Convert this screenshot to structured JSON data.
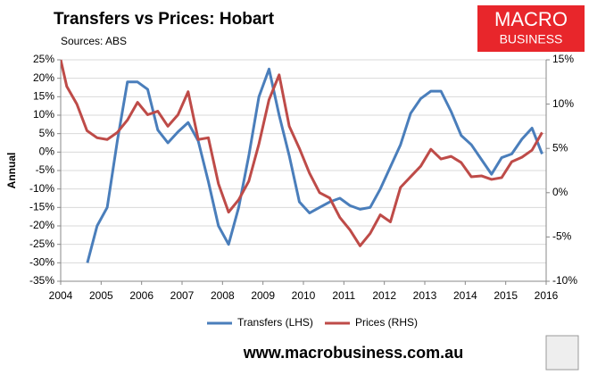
{
  "chart_data": {
    "type": "line",
    "title": "Transfers vs Prices: Hobart",
    "subtitle": "Sources: ABS",
    "ylabel": "Annual",
    "brand": [
      "MACRO",
      "BUSINESS"
    ],
    "footer": "www.macrobusiness.com.au",
    "xlim": [
      2004,
      2016
    ],
    "xticks": [
      2004,
      2005,
      2006,
      2007,
      2008,
      2009,
      2010,
      2011,
      2012,
      2013,
      2014,
      2015,
      2016
    ],
    "ylim": [
      -35,
      25
    ],
    "yticks": [
      {
        "value": -35,
        "label": "-35%"
      },
      {
        "value": -30,
        "label": "-30%"
      },
      {
        "value": -25,
        "label": "-25%"
      },
      {
        "value": -20,
        "label": "-20%"
      },
      {
        "value": -15,
        "label": "-15%"
      },
      {
        "value": -10,
        "label": "-10%"
      },
      {
        "value": -5,
        "label": "-5%"
      },
      {
        "value": 0,
        "label": "0%"
      },
      {
        "value": 5,
        "label": "5%"
      },
      {
        "value": 10,
        "label": "10%"
      },
      {
        "value": 15,
        "label": "15%"
      },
      {
        "value": 20,
        "label": "20%"
      },
      {
        "value": 25,
        "label": "25%"
      }
    ],
    "y2lim": [
      -10,
      15
    ],
    "y2ticks": [
      {
        "value": -10,
        "label": "-10%"
      },
      {
        "value": -5,
        "label": "-5%"
      },
      {
        "value": 0,
        "label": "0%"
      },
      {
        "value": 5,
        "label": "5%"
      },
      {
        "value": 10,
        "label": "10%"
      },
      {
        "value": 15,
        "label": "15%"
      }
    ],
    "grid": true,
    "legend": "bottom",
    "series": [
      {
        "name": "Transfers (LHS)",
        "color": "#4a7ebb",
        "axis": "y",
        "x": [
          2004.66,
          2004.9,
          2005.15,
          2005.4,
          2005.65,
          2005.9,
          2006.15,
          2006.4,
          2006.65,
          2006.9,
          2007.15,
          2007.4,
          2007.65,
          2007.9,
          2008.15,
          2008.4,
          2008.65,
          2008.9,
          2009.15,
          2009.4,
          2009.65,
          2009.9,
          2010.15,
          2010.4,
          2010.65,
          2010.9,
          2011.15,
          2011.4,
          2011.65,
          2011.9,
          2012.15,
          2012.4,
          2012.65,
          2012.9,
          2013.15,
          2013.4,
          2013.65,
          2013.9,
          2014.15,
          2014.4,
          2014.65,
          2014.9,
          2015.15,
          2015.4,
          2015.65,
          2015.9
        ],
        "values": [
          -30,
          -20,
          -15,
          3,
          19,
          19,
          17,
          6,
          2.5,
          5.5,
          8,
          3,
          -8,
          -20,
          -25,
          -15,
          -1,
          15,
          22.5,
          10,
          -1,
          -13.5,
          -16.5,
          -15,
          -13.5,
          -12.5,
          -14.5,
          -15.5,
          -15,
          -10,
          -4,
          2,
          10.5,
          14.5,
          16.5,
          16.5,
          11,
          4.5,
          2,
          -2,
          -6,
          -1.5,
          -0.5,
          3.5,
          6.5,
          -0.5
        ]
      },
      {
        "name": "Prices (RHS)",
        "color": "#be4b48",
        "axis": "y2",
        "x": [
          2004.0,
          2004.15,
          2004.4,
          2004.65,
          2004.9,
          2005.15,
          2005.4,
          2005.65,
          2005.9,
          2006.15,
          2006.4,
          2006.65,
          2006.9,
          2007.15,
          2007.4,
          2007.65,
          2007.9,
          2008.15,
          2008.4,
          2008.65,
          2008.9,
          2009.15,
          2009.4,
          2009.65,
          2009.9,
          2010.15,
          2010.4,
          2010.65,
          2010.9,
          2011.15,
          2011.4,
          2011.65,
          2011.9,
          2012.15,
          2012.4,
          2012.65,
          2012.9,
          2013.15,
          2013.4,
          2013.65,
          2013.9,
          2014.15,
          2014.4,
          2014.65,
          2014.9,
          2015.15,
          2015.4,
          2015.65,
          2015.9
        ],
        "values": [
          15,
          12,
          10,
          7,
          6.2,
          6,
          6.8,
          8.2,
          10.2,
          8.8,
          9.2,
          7.5,
          8.8,
          11.4,
          6,
          6.2,
          1,
          -2.2,
          -0.8,
          1.3,
          5.5,
          10.5,
          13.3,
          7.5,
          5,
          2.2,
          0,
          -0.6,
          -2.8,
          -4.2,
          -6,
          -4.6,
          -2.5,
          -3.3,
          0.6,
          1.8,
          3,
          4.9,
          3.8,
          4.1,
          3.4,
          1.8,
          1.9,
          1.5,
          1.7,
          3.5,
          4,
          4.8,
          6.8
        ]
      }
    ]
  }
}
